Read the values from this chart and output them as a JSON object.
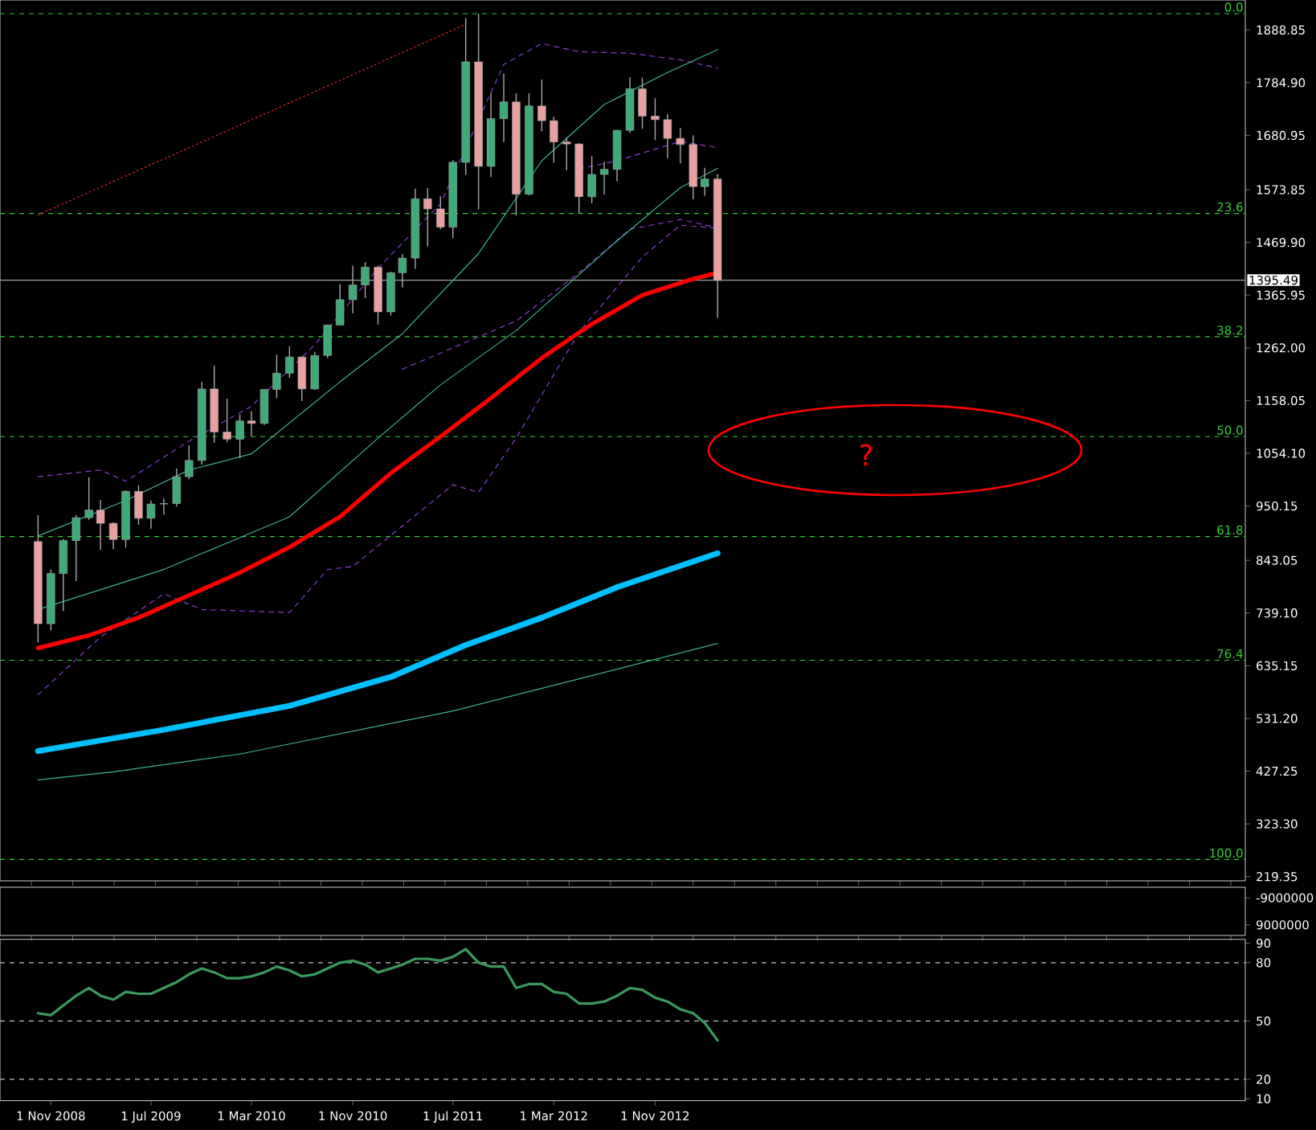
{
  "chart_data": [
    {
      "type": "candlestick",
      "x": [
        "2008-10",
        "2008-11",
        "2008-12",
        "2009-01",
        "2009-02",
        "2009-03",
        "2009-04",
        "2009-05",
        "2009-06",
        "2009-07",
        "2009-08",
        "2009-09",
        "2009-10",
        "2009-11",
        "2009-12",
        "2010-01",
        "2010-02",
        "2010-03",
        "2010-04",
        "2010-05",
        "2010-06",
        "2010-07",
        "2010-08",
        "2010-09",
        "2010-10",
        "2010-11",
        "2010-12",
        "2011-01",
        "2011-02",
        "2011-03",
        "2011-04",
        "2011-05",
        "2011-06",
        "2011-07",
        "2011-08",
        "2011-09",
        "2011-10",
        "2011-11",
        "2011-12",
        "2012-01",
        "2012-02",
        "2012-03",
        "2012-04",
        "2012-05",
        "2012-06",
        "2012-07",
        "2012-08",
        "2012-09",
        "2012-10",
        "2012-11",
        "2012-12",
        "2013-01",
        "2013-02",
        "2013-03",
        "2013-04"
      ],
      "ohlc": [
        [
          880,
          932,
          681,
          718
        ],
        [
          718,
          825,
          705,
          817
        ],
        [
          817,
          885,
          743,
          882
        ],
        [
          882,
          932,
          802,
          927
        ],
        [
          927,
          1007,
          923,
          942
        ],
        [
          942,
          962,
          864,
          916
        ],
        [
          916,
          918,
          865,
          884
        ],
        [
          884,
          981,
          868,
          979
        ],
        [
          979,
          991,
          913,
          926
        ],
        [
          926,
          961,
          905,
          954
        ],
        [
          954,
          965,
          933,
          955
        ],
        [
          955,
          1024,
          949,
          1008
        ],
        [
          1008,
          1070,
          1003,
          1040
        ],
        [
          1040,
          1195,
          1032,
          1181
        ],
        [
          1181,
          1227,
          1075,
          1096
        ],
        [
          1096,
          1162,
          1076,
          1082
        ],
        [
          1082,
          1131,
          1044,
          1118
        ],
        [
          1118,
          1137,
          1088,
          1113
        ],
        [
          1113,
          1180,
          1110,
          1180
        ],
        [
          1180,
          1249,
          1163,
          1212
        ],
        [
          1212,
          1265,
          1203,
          1244
        ],
        [
          1244,
          1245,
          1157,
          1181
        ],
        [
          1181,
          1254,
          1179,
          1247
        ],
        [
          1247,
          1308,
          1242,
          1307
        ],
        [
          1307,
          1388,
          1306,
          1357
        ],
        [
          1357,
          1424,
          1330,
          1386
        ],
        [
          1386,
          1431,
          1360,
          1421
        ],
        [
          1421,
          1424,
          1308,
          1333
        ],
        [
          1333,
          1412,
          1326,
          1410
        ],
        [
          1410,
          1447,
          1381,
          1439
        ],
        [
          1439,
          1576,
          1418,
          1556
        ],
        [
          1556,
          1577,
          1462,
          1536
        ],
        [
          1536,
          1561,
          1496,
          1500
        ],
        [
          1500,
          1632,
          1478,
          1628
        ],
        [
          1628,
          1912,
          1603,
          1826
        ],
        [
          1826,
          1921,
          1535,
          1620
        ],
        [
          1620,
          1765,
          1599,
          1714
        ],
        [
          1714,
          1803,
          1668,
          1747
        ],
        [
          1747,
          1764,
          1523,
          1565
        ],
        [
          1565,
          1764,
          1563,
          1739
        ],
        [
          1739,
          1791,
          1689,
          1710
        ],
        [
          1710,
          1718,
          1627,
          1668
        ],
        [
          1668,
          1677,
          1612,
          1664
        ],
        [
          1664,
          1666,
          1527,
          1560
        ],
        [
          1560,
          1640,
          1547,
          1604
        ],
        [
          1604,
          1629,
          1564,
          1614
        ],
        [
          1614,
          1692,
          1590,
          1691
        ],
        [
          1691,
          1796,
          1686,
          1773
        ],
        [
          1773,
          1795,
          1694,
          1719
        ],
        [
          1719,
          1754,
          1672,
          1712
        ],
        [
          1712,
          1723,
          1636,
          1675
        ],
        [
          1675,
          1696,
          1626,
          1663
        ],
        [
          1663,
          1681,
          1555,
          1580
        ],
        [
          1580,
          1617,
          1562,
          1595
        ],
        [
          1595,
          1605,
          1321,
          1395
        ]
      ],
      "series": [
        {
          "type": "line",
          "color": "#d02020",
          "line_style": "dotted",
          "x": [
            "2008-10",
            "2011-08"
          ],
          "values": [
            1524,
            1900
          ]
        },
        {
          "type": "line",
          "color": "#8a3ad0",
          "line_style": "dashed",
          "x": [
            "2008-10",
            "2009-03",
            "2009-05",
            "2009-10",
            "2010-03",
            "2010-08",
            "2011-01",
            "2011-06",
            "2011-11",
            "2012-02",
            "2012-05",
            "2012-09",
            "2013-01",
            "2013-04"
          ],
          "values": [
            1008,
            1021,
            999,
            1078,
            1147,
            1268,
            1419,
            1546,
            1821,
            1862,
            1846,
            1843,
            1830,
            1814
          ]
        },
        {
          "type": "line",
          "color": "#8a3ad0",
          "line_style": "dashed",
          "x": [
            "2011-03",
            "2011-12",
            "2012-05",
            "2012-09",
            "2013-01",
            "2013-04"
          ],
          "values": [
            1220,
            1315,
            1410,
            1496,
            1515,
            1499
          ]
        },
        {
          "type": "line",
          "color": "#8a3ad0",
          "line_style": "dashed",
          "x": [
            "2008-10",
            "2009-03",
            "2009-08",
            "2009-11",
            "2010-06",
            "2010-09",
            "2010-11",
            "2011-07",
            "2011-09",
            "2011-12",
            "2012-05",
            "2012-10",
            "2013-01",
            "2013-04"
          ],
          "values": [
            578,
            692,
            777,
            746,
            740,
            825,
            831,
            992,
            977,
            1084,
            1293,
            1441,
            1504,
            1498
          ]
        },
        {
          "type": "line",
          "color": "#8a3ad0",
          "line_style": "dashed",
          "x": [
            "2012-05",
            "2012-08",
            "2013-01",
            "2013-04"
          ],
          "values": [
            1615,
            1631,
            1669,
            1657
          ]
        },
        {
          "type": "line",
          "color": "#40b090",
          "line_style": "solid",
          "x": [
            "2008-10",
            "2009-05",
            "2009-10",
            "2010-03",
            "2010-10",
            "2011-03",
            "2011-09",
            "2012-02",
            "2012-07",
            "2012-12",
            "2013-04"
          ],
          "values": [
            891,
            961,
            1021,
            1053,
            1195,
            1290,
            1448,
            1631,
            1742,
            1805,
            1850
          ]
        },
        {
          "type": "line",
          "color": "#40b090",
          "line_style": "solid",
          "x": [
            "2008-10",
            "2009-08",
            "2010-06",
            "2011-01",
            "2011-06",
            "2011-12",
            "2012-08",
            "2013-01",
            "2013-04"
          ],
          "values": [
            746,
            825,
            929,
            1084,
            1189,
            1296,
            1473,
            1578,
            1616
          ]
        },
        {
          "type": "line",
          "color": "#40b090",
          "line_style": "solid",
          "x": [
            "2008-10",
            "2009-04",
            "2010-02",
            "2011-07",
            "2013-04"
          ],
          "values": [
            410,
            426,
            461,
            546,
            679
          ]
        },
        {
          "type": "line",
          "color": "#00bfff",
          "line_style": "solid",
          "x": [
            "2008-10",
            "2009-08",
            "2010-06",
            "2011-02",
            "2011-08",
            "2012-02",
            "2012-08",
            "2013-04"
          ],
          "values": [
            467,
            509,
            556,
            613,
            676,
            730,
            790,
            857
          ]
        },
        {
          "type": "line",
          "color": "#ff0000",
          "line_style": "solid",
          "x": [
            "2008-10",
            "2009-02",
            "2009-06",
            "2009-10",
            "2010-02",
            "2010-06",
            "2010-10",
            "2011-02",
            "2011-06",
            "2011-10",
            "2012-02",
            "2012-06",
            "2012-10",
            "2013-02",
            "2013-04"
          ],
          "values": [
            670,
            695,
            730,
            774,
            819,
            869,
            929,
            1015,
            1087,
            1163,
            1242,
            1309,
            1366,
            1398,
            1410
          ]
        }
      ],
      "xlim": [
        "2008-07-01",
        "2016-09-28"
      ],
      "ylim": [
        211,
        1948
      ],
      "yticks": [
        {
          "value": 1888.85,
          "label": "1888.85"
        },
        {
          "value": 1784.9,
          "label": "1784.90"
        },
        {
          "value": 1680.95,
          "label": "1680.95"
        },
        {
          "value": 1573.85,
          "label": "1573.85"
        },
        {
          "value": 1469.9,
          "label": "1469.90"
        },
        {
          "value": 1365.95,
          "label": "1365.95"
        },
        {
          "value": 1262,
          "label": "1262.00"
        },
        {
          "value": 1158.05,
          "label": "1158.05"
        },
        {
          "value": 1054.1,
          "label": "1054.10"
        },
        {
          "value": 950.15,
          "label": "950.15"
        },
        {
          "value": 843.05,
          "label": "843.05"
        },
        {
          "value": 739.1,
          "label": "739.10"
        },
        {
          "value": 635.15,
          "label": "635.15"
        },
        {
          "value": 531.2,
          "label": "531.20"
        },
        {
          "value": 427.25,
          "label": "427.25"
        },
        {
          "value": 323.3,
          "label": "323.30"
        },
        {
          "value": 219.35,
          "label": "219.35"
        }
      ],
      "tick_labels": "y",
      "ref_lines": [
        {
          "axis": "y",
          "value": 1921,
          "color": "#33cc33",
          "line_style": "dashed"
        },
        {
          "axis": "y",
          "value": 1527,
          "color": "#33cc33",
          "line_style": "dashed"
        },
        {
          "axis": "y",
          "value": 1284,
          "color": "#33cc33",
          "line_style": "dashed"
        },
        {
          "axis": "y",
          "value": 1087,
          "color": "#33cc33",
          "line_style": "dashed"
        },
        {
          "axis": "y",
          "value": 890,
          "color": "#33cc33",
          "line_style": "dashed"
        },
        {
          "axis": "y",
          "value": 646,
          "color": "#33cc33",
          "line_style": "dashed"
        },
        {
          "axis": "y",
          "value": 253,
          "color": "#33cc33",
          "line_style": "dashed"
        },
        {
          "axis": "y",
          "value": 1395.49,
          "label": "1395.49",
          "color": "#a0a0a0",
          "line_style": "solid"
        }
      ],
      "annotations": [
        "?",
        {
          "text": "0.0",
          "y": 1921
        },
        {
          "text": "23.6",
          "y": 1527
        },
        {
          "text": "38.2",
          "y": 1284
        },
        {
          "text": "50.0",
          "y": 1087
        },
        {
          "text": "61.8",
          "y": 890
        },
        {
          "text": "76.4",
          "y": 646
        },
        {
          "text": "100.0",
          "y": 253
        }
      ]
    },
    {
      "type": "line",
      "xlim": [
        "2008-07-01",
        "2016-09-28"
      ],
      "ylim": [
        16000000,
        -16000000
      ],
      "yticks": [
        -9000000,
        9000000
      ],
      "tick_labels": "y"
    },
    {
      "type": "line",
      "series": [
        {
          "color": "#3a9a5e",
          "x": [
            "2008-10",
            "2008-11",
            "2008-12",
            "2009-01",
            "2009-02",
            "2009-03",
            "2009-04",
            "2009-05",
            "2009-06",
            "2009-07",
            "2009-08",
            "2009-09",
            "2009-10",
            "2009-11",
            "2009-12",
            "2010-01",
            "2010-02",
            "2010-03",
            "2010-04",
            "2010-05",
            "2010-06",
            "2010-07",
            "2010-08",
            "2010-09",
            "2010-10",
            "2010-11",
            "2010-12",
            "2011-01",
            "2011-02",
            "2011-03",
            "2011-04",
            "2011-05",
            "2011-06",
            "2011-07",
            "2011-08",
            "2011-09",
            "2011-10",
            "2011-11",
            "2011-12",
            "2012-01",
            "2012-02",
            "2012-03",
            "2012-04",
            "2012-05",
            "2012-06",
            "2012-07",
            "2012-08",
            "2012-09",
            "2012-10",
            "2012-11",
            "2012-12",
            "2013-01",
            "2013-02",
            "2013-03",
            "2013-04"
          ],
          "values": [
            54,
            53,
            58,
            63,
            67,
            63,
            61,
            65,
            64,
            64,
            67,
            70,
            74,
            77,
            75,
            72,
            72,
            73,
            75,
            78,
            76,
            73,
            74,
            77,
            80,
            81,
            79,
            75,
            77,
            79,
            82,
            82,
            81,
            83,
            87,
            80,
            78,
            78,
            67,
            69,
            69,
            65,
            64,
            59,
            59,
            60,
            63,
            67,
            66,
            62,
            60,
            56,
            54,
            49,
            40
          ]
        }
      ],
      "xlim": [
        "2008-07-01",
        "2016-09-28"
      ],
      "ylim": [
        9,
        92
      ],
      "yticks": [
        10,
        20,
        50,
        80,
        90
      ],
      "xticks": [
        {
          "value": "2008-11-01",
          "label": "1 Nov 2008"
        },
        {
          "value": "2009-07-01",
          "label": "1 Jul 2009"
        },
        {
          "value": "2010-03-01",
          "label": "1 Mar 2010"
        },
        {
          "value": "2010-11-01",
          "label": "1 Nov 2010"
        },
        {
          "value": "2011-07-01",
          "label": "1 Jul 2011"
        },
        {
          "value": "2012-03-01",
          "label": "1 Mar 2012"
        },
        {
          "value": "2012-11-01",
          "label": "1 Nov 2012"
        }
      ],
      "ref_lines": [
        {
          "axis": "y",
          "value": 20,
          "color": "#c0c0c0",
          "line_style": "dashed"
        },
        {
          "axis": "y",
          "value": 50,
          "color": "#c0c0c0",
          "line_style": "dashed"
        },
        {
          "axis": "y",
          "value": 80,
          "color": "#c0c0c0",
          "line_style": "dashed"
        }
      ]
    }
  ]
}
